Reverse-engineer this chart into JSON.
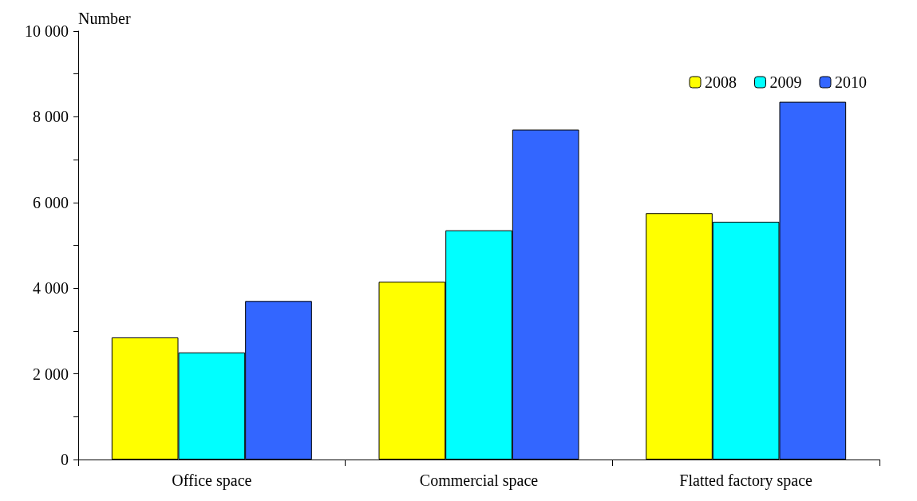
{
  "chart_data": {
    "type": "bar",
    "ylabel": "Number",
    "categories": [
      "Office space",
      "Commercial space",
      "Flatted factory space"
    ],
    "series": [
      {
        "name": "2008",
        "color": "#ffff00",
        "values": [
          2850,
          4150,
          5750
        ]
      },
      {
        "name": "2009",
        "color": "#00ffff",
        "values": [
          2500,
          5350,
          5550
        ]
      },
      {
        "name": "2010",
        "color": "#3366ff",
        "values": [
          3700,
          7700,
          8350
        ]
      }
    ],
    "ylim": [
      0,
      10000
    ],
    "yticks": [
      {
        "value": 0,
        "label": "0"
      },
      {
        "value": 1000,
        "label": null
      },
      {
        "value": 2000,
        "label": "2 000"
      },
      {
        "value": 3000,
        "label": null
      },
      {
        "value": 4000,
        "label": "4 000"
      },
      {
        "value": 5000,
        "label": null
      },
      {
        "value": 6000,
        "label": "6 000"
      },
      {
        "value": 7000,
        "label": null
      },
      {
        "value": 8000,
        "label": "8 000"
      },
      {
        "value": 9000,
        "label": null
      },
      {
        "value": 10000,
        "label": "10 000"
      }
    ],
    "grid": false,
    "legend": "top right"
  }
}
